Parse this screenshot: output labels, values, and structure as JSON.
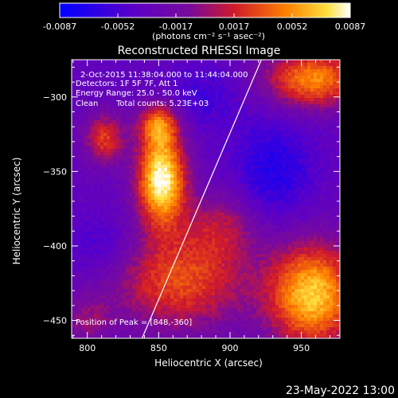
{
  "chart_data": {
    "type": "heatmap",
    "title": "Reconstructed RHESSI Image",
    "xlabel": "Heliocentric X (arcsec)",
    "ylabel": "Heliocentric Y (arcsec)",
    "xlim": [
      789,
      977
    ],
    "ylim": [
      -462,
      -275
    ],
    "xticks": [
      800,
      850,
      900,
      950
    ],
    "yticks": [
      -300,
      -350,
      -400,
      -450
    ],
    "colorbar": {
      "ticks": [
        "-0.0087",
        "-0.0052",
        "-0.0017",
        "0.0017",
        "0.0052",
        "0.0087"
      ],
      "units": "(photons cm⁻² s⁻¹ asec⁻²)",
      "range": [
        -0.0087,
        0.0087
      ]
    },
    "annotations": {
      "time": "2-Oct-2015 11:38:04.000 to 11:44:04.000",
      "detectors": "Detectors: 1F 5F 7F, Att 1",
      "energy": "Energy Range: 25.0 - 50.0 keV",
      "clean": "Clean",
      "counts": "Total counts: 5.23E+03",
      "peak": "Position of Peak = [848,-360]"
    },
    "sources": [
      {
        "x": 852,
        "y": -355,
        "sx": 12,
        "sy": 22,
        "amp": 1.0
      },
      {
        "x": 850,
        "y": -318,
        "sx": 10,
        "sy": 10,
        "amp": 0.55
      },
      {
        "x": 812,
        "y": -328,
        "sx": 10,
        "sy": 12,
        "amp": 0.5
      },
      {
        "x": 958,
        "y": -433,
        "sx": 22,
        "sy": 25,
        "amp": 0.85
      },
      {
        "x": 958,
        "y": -288,
        "sx": 24,
        "sy": 14,
        "amp": 0.7
      },
      {
        "x": 865,
        "y": -423,
        "sx": 34,
        "sy": 24,
        "amp": 0.55
      },
      {
        "x": 895,
        "y": -385,
        "sx": 18,
        "sy": 16,
        "amp": 0.3
      },
      {
        "x": 800,
        "y": -450,
        "sx": 12,
        "sy": 12,
        "amp": 0.25
      }
    ],
    "negatives": [
      {
        "x": 930,
        "y": -350,
        "sx": 20,
        "sy": 25,
        "amp": 0.5
      },
      {
        "x": 880,
        "y": -300,
        "sx": 20,
        "sy": 15,
        "amp": 0.3
      },
      {
        "x": 810,
        "y": -400,
        "sx": 20,
        "sy": 15,
        "amp": 0.3
      }
    ],
    "limb_line": [
      [
        837,
        -465
      ],
      [
        922,
        -275
      ]
    ]
  },
  "footer": {
    "date": "23-May-2022 13:00"
  }
}
